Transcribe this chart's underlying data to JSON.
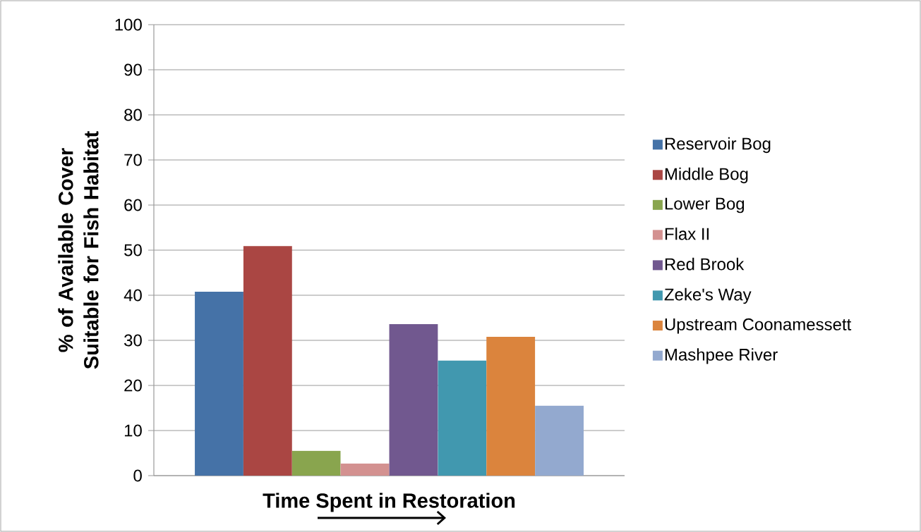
{
  "chart_data": {
    "type": "bar",
    "xlabel": "Time Spent in Restoration",
    "ylabel": "% of Available Cover Suitable for Fish Habitat",
    "categories": [
      null
    ],
    "series": [
      {
        "name": "Reservoir Bog",
        "color": "#4572a7",
        "values": [
          40.8
        ]
      },
      {
        "name": "Middle Bog",
        "color": "#aa4643",
        "values": [
          50.9
        ]
      },
      {
        "name": "Lower Bog",
        "color": "#89a54e",
        "values": [
          5.5
        ]
      },
      {
        "name": "Flax II",
        "color": "#d39190",
        "values": [
          2.7
        ]
      },
      {
        "name": "Red Brook",
        "color": "#71588f",
        "values": [
          33.6
        ]
      },
      {
        "name": "Zeke's Way",
        "color": "#4198af",
        "values": [
          25.5
        ]
      },
      {
        "name": "Upstream Coonamessett",
        "color": "#db843d",
        "values": [
          30.8
        ]
      },
      {
        "name": "Mashpee River",
        "color": "#93a9cf",
        "values": [
          15.5
        ]
      }
    ],
    "ylim": [
      0,
      100
    ],
    "yticks": [
      0,
      10,
      20,
      30,
      40,
      50,
      60,
      70,
      80,
      90,
      100
    ],
    "grid": "y",
    "legend": "right"
  }
}
